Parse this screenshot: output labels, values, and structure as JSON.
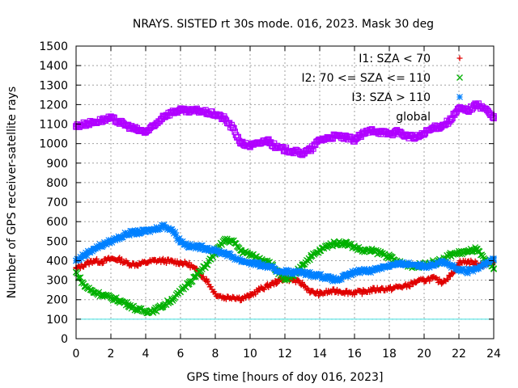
{
  "chart_data": {
    "type": "scatter",
    "title": "NRAYS. SISTED rt 30s mode. 016, 2023. Mask 30 deg",
    "xlabel": "GPS time [hours of doy 016, 2023]",
    "ylabel": "Number of GPS receiver-satellite rays",
    "xlim": [
      0,
      24
    ],
    "ylim": [
      0,
      1500
    ],
    "xticks": [
      0,
      2,
      4,
      6,
      8,
      10,
      12,
      14,
      16,
      18,
      20,
      22,
      24
    ],
    "yticks": [
      0,
      100,
      200,
      300,
      400,
      500,
      600,
      700,
      800,
      900,
      1000,
      1100,
      1200,
      1300,
      1400,
      1500
    ],
    "grid": true,
    "legend_position": "top-right",
    "reference_line": {
      "y": 100,
      "color": "#40e0e0"
    },
    "series": [
      {
        "name": "I1: SZA < 70",
        "marker": "plus",
        "color": "#e00000",
        "x": [
          0,
          0.5,
          1,
          1.5,
          2,
          2.5,
          3,
          3.5,
          4,
          4.5,
          5,
          5.5,
          6,
          6.5,
          7,
          7.5,
          8,
          8.5,
          9,
          9.5,
          10,
          10.5,
          11,
          11.5,
          12,
          12.5,
          13,
          13.5,
          14,
          14.5,
          15,
          15.5,
          16,
          16.5,
          17,
          17.5,
          18,
          18.5,
          19,
          19.5,
          20,
          20.5,
          21,
          21.5,
          22,
          22.5,
          23,
          23.5,
          24
        ],
        "y": [
          360,
          380,
          400,
          395,
          410,
          405,
          385,
          380,
          390,
          400,
          400,
          395,
          390,
          380,
          345,
          300,
          230,
          210,
          215,
          205,
          220,
          250,
          270,
          290,
          310,
          300,
          280,
          240,
          230,
          240,
          245,
          240,
          235,
          240,
          250,
          255,
          255,
          265,
          270,
          290,
          300,
          310,
          290,
          320,
          390,
          395,
          385,
          380,
          390
        ]
      },
      {
        "name": "I2: 70 <= SZA <= 110",
        "marker": "cross",
        "color": "#00b000",
        "x": [
          0,
          0.5,
          1,
          1.5,
          2,
          2.5,
          3,
          3.5,
          4,
          4.5,
          5,
          5.5,
          6,
          6.5,
          7,
          7.5,
          8,
          8.5,
          9,
          9.5,
          10,
          10.5,
          11,
          11.5,
          12,
          12.5,
          13,
          13.5,
          14,
          14.5,
          15,
          15.5,
          16,
          16.5,
          17,
          17.5,
          18,
          18.5,
          19,
          19.5,
          20,
          20.5,
          21,
          21.5,
          22,
          22.5,
          23,
          23.5,
          24
        ],
        "y": [
          340,
          270,
          240,
          225,
          210,
          195,
          175,
          150,
          140,
          145,
          170,
          200,
          240,
          290,
          330,
          380,
          440,
          505,
          500,
          450,
          430,
          410,
          400,
          350,
          300,
          320,
          380,
          420,
          450,
          480,
          490,
          490,
          470,
          450,
          450,
          440,
          420,
          390,
          380,
          370,
          380,
          390,
          400,
          430,
          440,
          445,
          460,
          400,
          360
        ]
      },
      {
        "name": "I3: SZA > 110",
        "marker": "star",
        "color": "#0080ff",
        "x": [
          0,
          0.5,
          1,
          1.5,
          2,
          2.5,
          3,
          3.5,
          4,
          4.5,
          5,
          5.5,
          6,
          6.5,
          7,
          7.5,
          8,
          8.5,
          9,
          9.5,
          10,
          10.5,
          11,
          11.5,
          12,
          12.5,
          13,
          13.5,
          14,
          14.5,
          15,
          15.5,
          16,
          16.5,
          17,
          17.5,
          18,
          18.5,
          19,
          19.5,
          20,
          20.5,
          21,
          21.5,
          22,
          22.5,
          23,
          23.5,
          24
        ],
        "y": [
          400,
          430,
          460,
          480,
          500,
          520,
          540,
          545,
          550,
          560,
          580,
          560,
          500,
          475,
          470,
          465,
          450,
          440,
          420,
          400,
          390,
          380,
          370,
          350,
          345,
          340,
          340,
          330,
          325,
          310,
          300,
          320,
          340,
          350,
          350,
          365,
          375,
          380,
          385,
          380,
          370,
          380,
          400,
          375,
          350,
          345,
          355,
          390,
          410
        ]
      },
      {
        "name": "global",
        "marker": "square",
        "color": "#b000ff",
        "x": [
          0,
          0.5,
          1,
          1.5,
          2,
          2.5,
          3,
          3.5,
          4,
          4.5,
          5,
          5.5,
          6,
          6.5,
          7,
          7.5,
          8,
          8.5,
          9,
          9.5,
          10,
          10.5,
          11,
          11.5,
          12,
          12.5,
          13,
          13.5,
          14,
          14.5,
          15,
          15.5,
          16,
          16.5,
          17,
          17.5,
          18,
          18.5,
          19,
          19.5,
          20,
          20.5,
          21,
          21.5,
          22,
          22.5,
          23,
          23.5,
          24
        ],
        "y": [
          1090,
          1100,
          1110,
          1120,
          1130,
          1110,
          1090,
          1070,
          1060,
          1090,
          1140,
          1160,
          1170,
          1165,
          1170,
          1160,
          1150,
          1130,
          1080,
          1000,
          990,
          1000,
          1020,
          980,
          970,
          960,
          950,
          970,
          1020,
          1030,
          1040,
          1030,
          1020,
          1050,
          1070,
          1060,
          1050,
          1060,
          1040,
          1030,
          1050,
          1080,
          1090,
          1120,
          1180,
          1170,
          1200,
          1180,
          1130
        ]
      }
    ]
  }
}
